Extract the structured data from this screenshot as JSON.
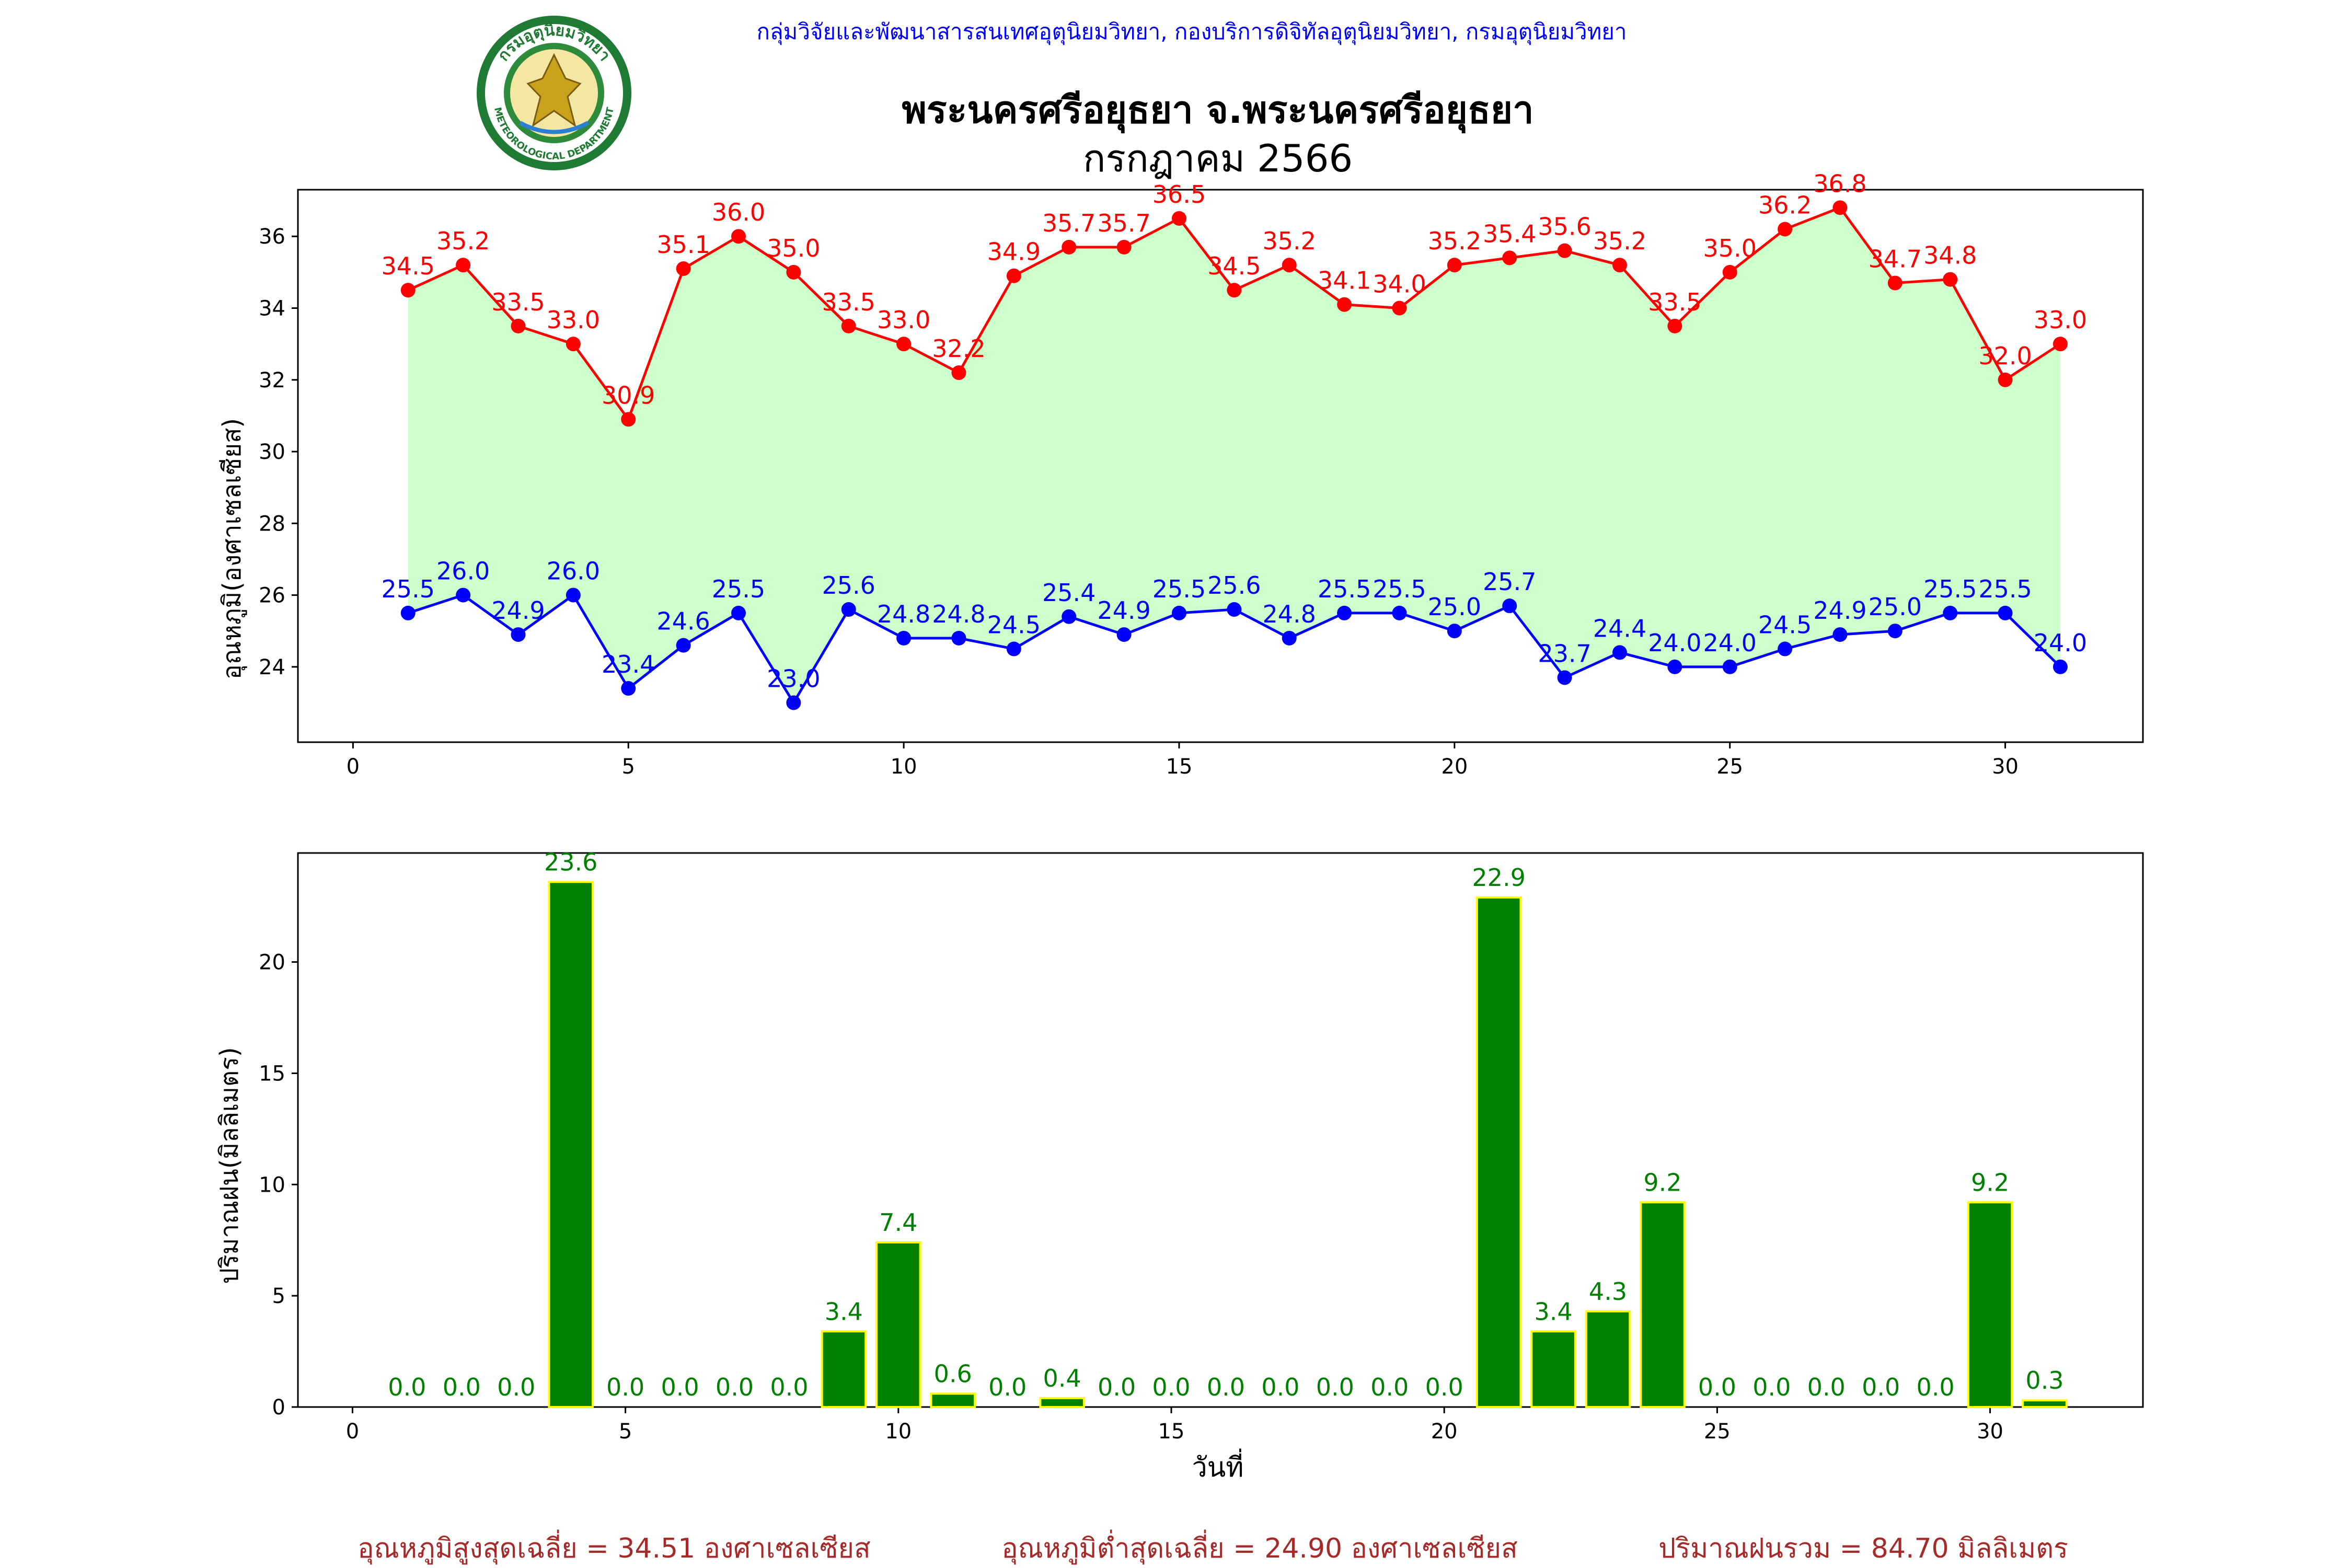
{
  "header": {
    "org_line": "กลุ่มวิจัยและพัฒนาสารสนเทศอุตุนิยมวิทยา, กองบริการดิจิทัลอุตุนิยมวิทยา, กรมอุตุนิยมวิทยา",
    "title_line1": "พระนครศรีอยุธยา จ.พระนครศรีอยุธยา",
    "title_line2": "กรกฎาคม 2566",
    "logo_text_top": "กรมอุตุนิยมวิทยา",
    "logo_text_bottom": "METEOROLOGICAL DEPARTMENT"
  },
  "colors": {
    "max_temp": "#ff0000",
    "min_temp": "#0000ff",
    "fill": "#ccffcc",
    "rain_bar": "#008000",
    "rain_edge": "#ffff00",
    "summary": "#a52a2a",
    "org_line": "#0000ff"
  },
  "chart_data": [
    {
      "type": "line",
      "ylabel": "อุณหภูมิ(องศาเซลเซียส)",
      "xlim": [
        -1,
        32.5
      ],
      "ylim": [
        21.9,
        37.3
      ],
      "x_ticks": [
        0,
        5,
        10,
        15,
        20,
        25,
        30
      ],
      "y_ticks": [
        24,
        26,
        28,
        30,
        32,
        34,
        36
      ],
      "fill_between": true,
      "x": [
        1,
        2,
        3,
        4,
        5,
        6,
        7,
        8,
        9,
        10,
        11,
        12,
        13,
        14,
        15,
        16,
        17,
        18,
        19,
        20,
        21,
        22,
        23,
        24,
        25,
        26,
        27,
        28,
        29,
        30,
        31
      ],
      "series": [
        {
          "key": "max",
          "values": [
            34.5,
            35.2,
            33.5,
            33.0,
            30.9,
            35.1,
            36.0,
            35.0,
            33.5,
            33.0,
            32.2,
            34.9,
            35.7,
            35.7,
            36.5,
            34.5,
            35.2,
            34.1,
            34.0,
            35.2,
            35.4,
            35.6,
            35.2,
            33.5,
            35.0,
            36.2,
            36.8,
            34.7,
            34.8,
            32.0,
            33.0
          ],
          "labels": [
            "34.5",
            "35.2",
            "33.5",
            "33.0",
            "30.9",
            "35.1",
            "36.0",
            "35.0",
            "33.5",
            "33.0",
            "32.2",
            "34.9",
            "35.7",
            "35.7",
            "36.5",
            "34.5",
            "35.2",
            "34.1",
            "34.0",
            "35.2",
            "35.4",
            "35.6",
            "35.2",
            "33.5",
            "35.0",
            "36.2",
            "36.8",
            "34.7",
            "34.8",
            "32.0",
            "33.0"
          ]
        },
        {
          "key": "min",
          "values": [
            25.5,
            26.0,
            24.9,
            26.0,
            23.4,
            24.6,
            25.5,
            23.0,
            25.6,
            24.8,
            24.8,
            24.5,
            25.4,
            24.9,
            25.5,
            25.6,
            24.8,
            25.5,
            25.5,
            25.0,
            25.7,
            23.7,
            24.4,
            24.0,
            24.0,
            24.5,
            24.9,
            25.0,
            25.5,
            25.5,
            24.0
          ],
          "labels": [
            "25.5",
            "26.0",
            "24.9",
            "26.0",
            "23.4",
            "24.6",
            "25.5",
            "23.0",
            "25.6",
            "24.8",
            "24.8",
            "24.5",
            "25.4",
            "24.9",
            "25.5",
            "25.6",
            "24.8",
            "25.5",
            "25.5",
            "25.0",
            "25.7",
            "23.7",
            "24.4",
            "24.0",
            "24.0",
            "24.5",
            "24.9",
            "25.0",
            "25.5",
            "25.5",
            "24.0"
          ]
        }
      ]
    },
    {
      "type": "bar",
      "xlabel": "วันที่",
      "ylabel": "ปริมาณฝน(มิลลิเมตร)",
      "xlim": [
        -1,
        32.8
      ],
      "ylim": [
        0,
        24.9
      ],
      "x_ticks": [
        0,
        5,
        10,
        15,
        20,
        25,
        30
      ],
      "y_ticks": [
        0,
        5,
        10,
        15,
        20
      ],
      "x": [
        1,
        2,
        3,
        4,
        5,
        6,
        7,
        8,
        9,
        10,
        11,
        12,
        13,
        14,
        15,
        16,
        17,
        18,
        19,
        20,
        21,
        22,
        23,
        24,
        25,
        26,
        27,
        28,
        29,
        30,
        31
      ],
      "values": [
        0.0,
        0.0,
        0.0,
        23.6,
        0.0,
        0.0,
        0.0,
        0.0,
        3.4,
        7.4,
        0.6,
        0.0,
        0.4,
        0.0,
        0.0,
        0.0,
        0.0,
        0.0,
        0.0,
        0.0,
        22.9,
        3.4,
        4.3,
        9.2,
        0.0,
        0.0,
        0.0,
        0.0,
        0.0,
        9.2,
        0.3
      ],
      "labels": [
        "0.0",
        "0.0",
        "0.0",
        "23.6",
        "0.0",
        "0.0",
        "0.0",
        "0.0",
        "3.4",
        "7.4",
        "0.6",
        "0.0",
        "0.4",
        "0.0",
        "0.0",
        "0.0",
        "0.0",
        "0.0",
        "0.0",
        "0.0",
        "22.9",
        "3.4",
        "4.3",
        "9.2",
        "0.0",
        "0.0",
        "0.0",
        "0.0",
        "0.0",
        "9.2",
        "0.3"
      ]
    }
  ],
  "summary": {
    "avg_max": "อุณหภูมิสูงสุดเฉลี่ย = 34.51 องศาเซลเซียส",
    "avg_min": "อุณหภูมิต่ำสุดเฉลี่ย = 24.90 องศาเซลเซียส",
    "total_rain": "ปริมาณฝนรวม = 84.70 มิลลิเมตร"
  }
}
